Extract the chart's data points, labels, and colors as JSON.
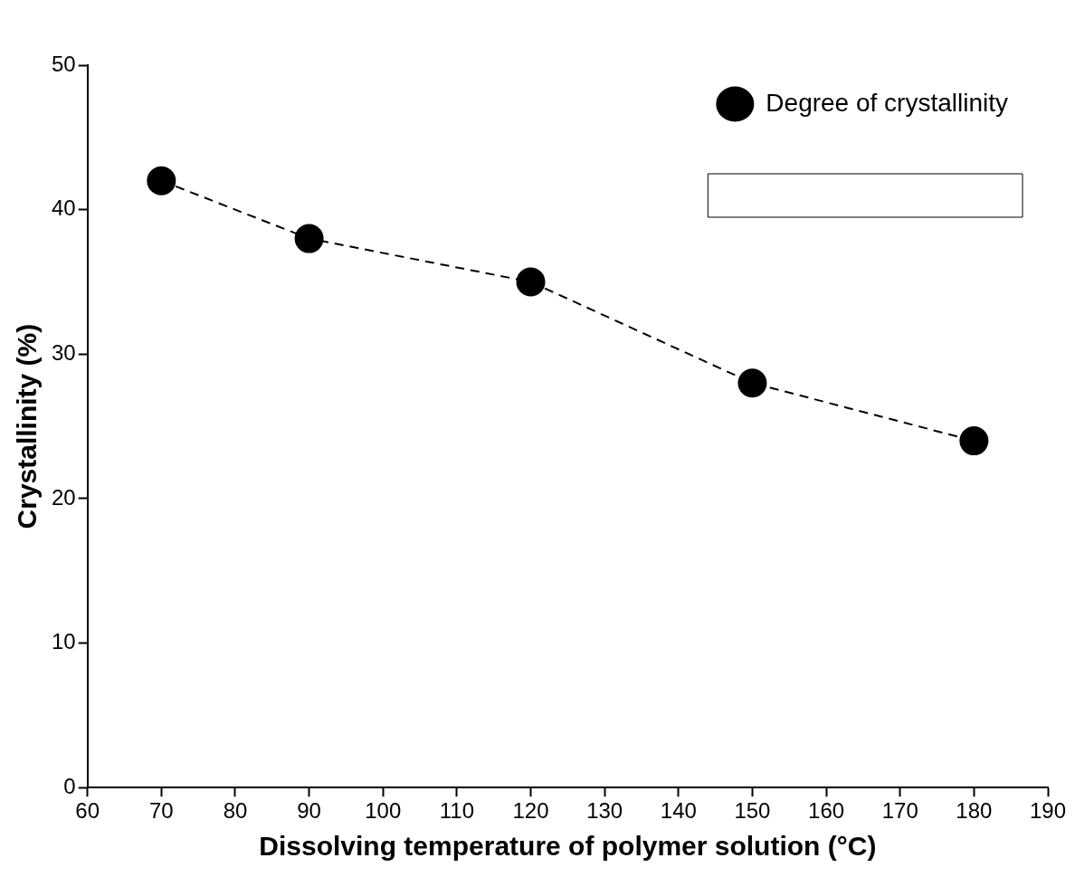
{
  "chart_data": {
    "type": "line",
    "xlabel": "Dissolving temperature of polymer solution (°C)",
    "ylabel": "Crystallinity (%)",
    "x": [
      70,
      90,
      120,
      150,
      180
    ],
    "series": [
      {
        "name": "Degree of crystallinity",
        "color": "#000000",
        "values": [
          42,
          38,
          35,
          28,
          24
        ]
      }
    ],
    "xlim": [
      60,
      190
    ],
    "xticks": [
      60,
      70,
      80,
      90,
      100,
      110,
      120,
      130,
      140,
      150,
      160,
      170,
      180,
      190
    ],
    "ylim": [
      0,
      50
    ],
    "yticks": [
      0,
      10,
      20,
      30,
      40,
      50
    ],
    "marker": "circle",
    "line_style": "dashed",
    "legend": "top right",
    "grid": false
  }
}
